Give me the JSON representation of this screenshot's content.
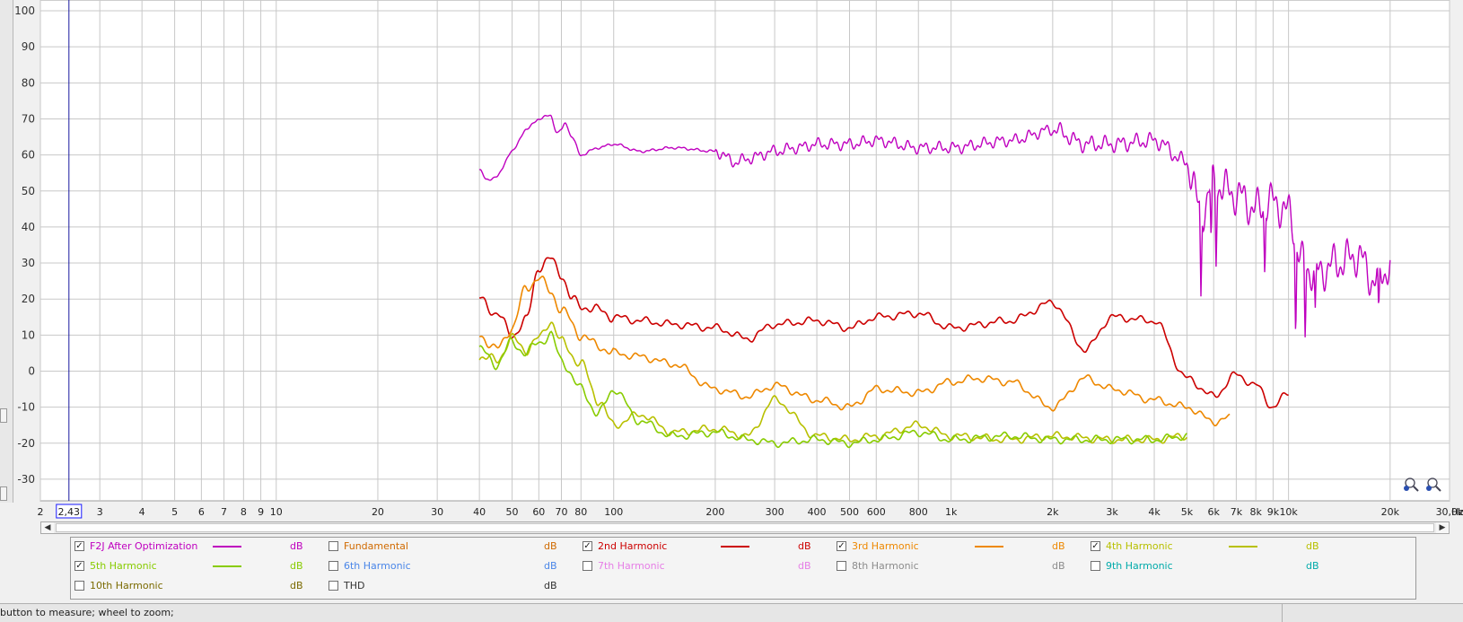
{
  "chart_data": {
    "type": "line",
    "title": "",
    "xlabel": "Hz",
    "ylabel": "",
    "xscale": "log",
    "xlim": [
      2,
      30000
    ],
    "ylim": [
      -36,
      103
    ],
    "grid": true,
    "cursor": {
      "label": "2,43",
      "x": 2.43
    },
    "y_ticks": [
      100,
      90,
      80,
      70,
      60,
      50,
      40,
      30,
      20,
      10,
      0,
      -10,
      -20,
      -30
    ],
    "x_ticks": [
      {
        "v": 2,
        "label": "2"
      },
      {
        "v": 3,
        "label": "3"
      },
      {
        "v": 4,
        "label": "4"
      },
      {
        "v": 5,
        "label": "5"
      },
      {
        "v": 6,
        "label": "6"
      },
      {
        "v": 7,
        "label": "7"
      },
      {
        "v": 8,
        "label": "8"
      },
      {
        "v": 9,
        "label": "9"
      },
      {
        "v": 10,
        "label": "10"
      },
      {
        "v": 20,
        "label": "20"
      },
      {
        "v": 30,
        "label": "30"
      },
      {
        "v": 40,
        "label": "40"
      },
      {
        "v": 50,
        "label": "50"
      },
      {
        "v": 60,
        "label": "60"
      },
      {
        "v": 70,
        "label": "70"
      },
      {
        "v": 80,
        "label": "80"
      },
      {
        "v": 100,
        "label": "100"
      },
      {
        "v": 200,
        "label": "200"
      },
      {
        "v": 300,
        "label": "300"
      },
      {
        "v": 400,
        "label": "400"
      },
      {
        "v": 500,
        "label": "500"
      },
      {
        "v": 600,
        "label": "600"
      },
      {
        "v": 800,
        "label": "800"
      },
      {
        "v": 1000,
        "label": "1k"
      },
      {
        "v": 2000,
        "label": "2k"
      },
      {
        "v": 3000,
        "label": "3k"
      },
      {
        "v": 4000,
        "label": "4k"
      },
      {
        "v": 5000,
        "label": "5k"
      },
      {
        "v": 6000,
        "label": "6k"
      },
      {
        "v": 7000,
        "label": "7k"
      },
      {
        "v": 8000,
        "label": "8k"
      },
      {
        "v": 9000,
        "label": "9k"
      },
      {
        "v": 10000,
        "label": "10k"
      },
      {
        "v": 20000,
        "label": "20k"
      },
      {
        "v": 30000,
        "label": "30,0k"
      }
    ],
    "series": [
      {
        "name": "F2J After Optimization",
        "color": "#bf00bf",
        "x": [
          40,
          42,
          45,
          50,
          55,
          60,
          65,
          68,
          70,
          72,
          75,
          80,
          90,
          100,
          120,
          150,
          200,
          230,
          250,
          300,
          350,
          400,
          500,
          600,
          800,
          1000,
          1500,
          2000,
          2500,
          3000,
          4000,
          5000,
          5500,
          6000,
          7000,
          8000,
          9000,
          10000,
          11000,
          12000,
          14000,
          16000,
          18000,
          20000
        ],
        "y": [
          56,
          53,
          54,
          61,
          67,
          70,
          71,
          66,
          67,
          69,
          65,
          60,
          62,
          63,
          61,
          62,
          61,
          58,
          59,
          61,
          62,
          63,
          63,
          64,
          62,
          62,
          64,
          67,
          63,
          63,
          64,
          58,
          44,
          52,
          49,
          45,
          47,
          44,
          30,
          27,
          30,
          32,
          25,
          29
        ]
      },
      {
        "name": "2nd Harmonic",
        "color": "#cc0000",
        "x": [
          40,
          45,
          50,
          55,
          60,
          65,
          70,
          75,
          80,
          90,
          100,
          120,
          150,
          200,
          250,
          300,
          400,
          500,
          600,
          800,
          1000,
          1500,
          2000,
          2500,
          3000,
          4000,
          5000,
          6000,
          7000,
          8000,
          9000,
          10000
        ],
        "y": [
          20,
          16,
          10,
          14,
          29,
          31,
          27,
          20,
          18,
          17,
          15,
          14,
          13,
          12,
          9,
          13,
          14,
          12,
          15,
          16,
          12,
          14,
          19,
          6,
          15,
          14,
          -2,
          -7,
          -1,
          -4,
          -10,
          -6
        ]
      },
      {
        "name": "3rd Harmonic",
        "color": "#ee8800",
        "x": [
          40,
          45,
          50,
          55,
          60,
          65,
          70,
          80,
          90,
          100,
          120,
          150,
          200,
          250,
          300,
          400,
          500,
          600,
          800,
          1000,
          1200,
          1500,
          2000,
          2500,
          3000,
          4000,
          5000,
          6000,
          6700
        ],
        "y": [
          10,
          6,
          12,
          23,
          26,
          22,
          17,
          10,
          7,
          5,
          4,
          2,
          -5,
          -7,
          -4,
          -8,
          -10,
          -5,
          -6,
          -3,
          -2,
          -3,
          -10,
          -2,
          -5,
          -8,
          -10,
          -14,
          -13
        ]
      },
      {
        "name": "4th Harmonic",
        "color": "#b8c000",
        "x": [
          40,
          45,
          50,
          55,
          60,
          65,
          70,
          80,
          90,
          100,
          120,
          150,
          200,
          250,
          300,
          400,
          500,
          600,
          800,
          1000,
          1500,
          2000,
          3000,
          4000,
          5000
        ],
        "y": [
          4,
          3,
          9,
          6,
          9,
          14,
          8,
          2,
          -8,
          -15,
          -12,
          -17,
          -16,
          -18,
          -8,
          -18,
          -19,
          -18,
          -15,
          -18,
          -19,
          -18,
          -19,
          -19,
          -18
        ]
      },
      {
        "name": "5th Harmonic",
        "color": "#88cc00",
        "x": [
          40,
          45,
          50,
          55,
          60,
          65,
          70,
          80,
          90,
          100,
          120,
          150,
          200,
          250,
          300,
          400,
          500,
          600,
          800,
          1000,
          1500,
          2000,
          3000,
          4000,
          5000
        ],
        "y": [
          6,
          2,
          8,
          5,
          8,
          10,
          3,
          -5,
          -12,
          -5,
          -14,
          -18,
          -17,
          -19,
          -20,
          -19,
          -20,
          -19,
          -17,
          -19,
          -18,
          -19,
          -19,
          -19,
          -18
        ]
      }
    ]
  },
  "legend": [
    {
      "name": "F2J After Optimization",
      "checked": true,
      "color": "#bf00bf",
      "unit": "dB",
      "show_swatch": true
    },
    {
      "name": "Fundamental",
      "checked": false,
      "color": "#d06a00",
      "unit": "dB",
      "show_swatch": false
    },
    {
      "name": "2nd Harmonic",
      "checked": true,
      "color": "#cc0000",
      "unit": "dB",
      "show_swatch": true
    },
    {
      "name": "3rd Harmonic",
      "checked": true,
      "color": "#ee8800",
      "unit": "dB",
      "show_swatch": true
    },
    {
      "name": "4th Harmonic",
      "checked": true,
      "color": "#b8c000",
      "unit": "dB",
      "show_swatch": true
    },
    {
      "name": "5th Harmonic",
      "checked": true,
      "color": "#88cc00",
      "unit": "dB",
      "show_swatch": true
    },
    {
      "name": "6th Harmonic",
      "checked": false,
      "color": "#4a86e8",
      "unit": "dB",
      "show_swatch": false
    },
    {
      "name": "7th Harmonic",
      "checked": false,
      "color": "#e67ee6",
      "unit": "dB",
      "show_swatch": false
    },
    {
      "name": "8th Harmonic",
      "checked": false,
      "color": "#8c8c8c",
      "unit": "dB",
      "show_swatch": false
    },
    {
      "name": "9th Harmonic",
      "checked": false,
      "color": "#00aaaa",
      "unit": "dB",
      "show_swatch": false
    },
    {
      "name": "10th Harmonic",
      "checked": false,
      "color": "#7a6a00",
      "unit": "dB",
      "show_swatch": false
    },
    {
      "name": "THD",
      "checked": false,
      "color": "#333333",
      "unit": "dB",
      "show_swatch": false
    }
  ],
  "status": {
    "text": "button to measure; wheel to zoom;"
  },
  "icons": {
    "zoom_out": "zoom-out-icon",
    "zoom_in": "zoom-in-icon",
    "scroll_left": "left-arrow-icon",
    "scroll_right": "right-arrow-icon"
  }
}
